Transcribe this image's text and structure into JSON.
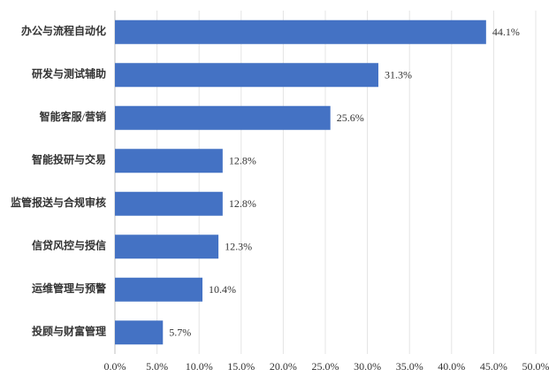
{
  "chart_data": {
    "type": "hbar",
    "categories": [
      "办公与流程自动化",
      "研发与测试辅助",
      "智能客服/营销",
      "智能投研与交易",
      "监管报送与合规审核",
      "信贷风控与授信",
      "运维管理与预警",
      "投顾与财富管理"
    ],
    "values": [
      44.1,
      31.3,
      25.6,
      12.8,
      12.8,
      12.3,
      10.4,
      5.7
    ],
    "value_labels": [
      "44.1%",
      "31.3%",
      "25.6%",
      "12.8%",
      "12.8%",
      "12.3%",
      "10.4%",
      "5.7%"
    ],
    "color": "#4472c4",
    "xlim": [
      0,
      50
    ],
    "xticks": [
      {
        "value": 0,
        "label": "0.0%"
      },
      {
        "value": 5,
        "label": "5.0%"
      },
      {
        "value": 10,
        "label": "10.0%"
      },
      {
        "value": 15,
        "label": "15.0%"
      },
      {
        "value": 20,
        "label": "20.0%"
      },
      {
        "value": 25,
        "label": "25.0%"
      },
      {
        "value": 30,
        "label": "30.0%"
      },
      {
        "value": 35,
        "label": "35.0%"
      },
      {
        "value": 40,
        "label": "40.0%"
      },
      {
        "value": 45,
        "label": "45.0%"
      },
      {
        "value": 50,
        "label": "50.0%"
      }
    ],
    "grid": true
  }
}
